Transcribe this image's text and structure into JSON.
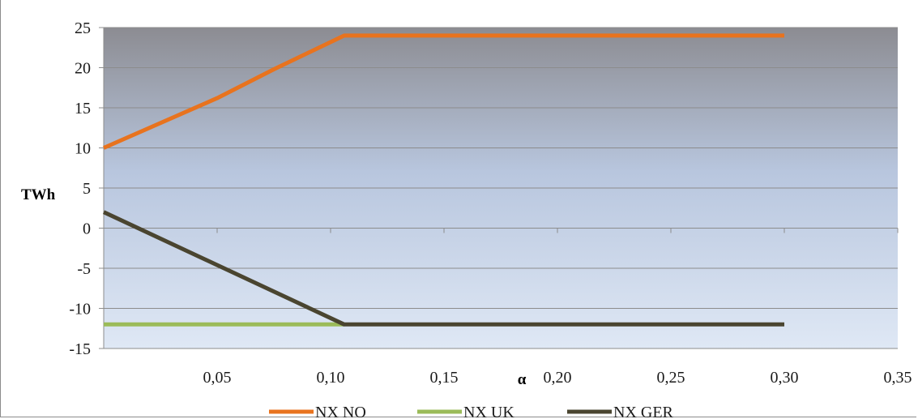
{
  "chart_data": {
    "type": "line",
    "title": "",
    "xlabel": "α",
    "ylabel": "TWh",
    "xlim": [
      0,
      0.35
    ],
    "ylim": [
      -15,
      25
    ],
    "x_ticks": [
      0.05,
      0.1,
      0.15,
      0.2,
      0.25,
      0.3,
      0.35
    ],
    "x_tick_labels": [
      "0,05",
      "0,10",
      "0,15",
      "0,20",
      "0,25",
      "0,30",
      "0,35"
    ],
    "y_ticks": [
      25,
      20,
      15,
      10,
      5,
      0,
      -5,
      -10,
      -15
    ],
    "y_tick_labels": [
      "25",
      "20",
      "15",
      "10",
      "5",
      "0",
      "-5",
      "-10",
      "-15"
    ],
    "grid": "horizontal",
    "legend_position": "bottom",
    "series": [
      {
        "name": "NX NO",
        "color": "#e8731e",
        "points": [
          [
            0,
            10
          ],
          [
            0.05,
            16.2
          ],
          [
            0.075,
            19.8
          ],
          [
            0.106,
            24
          ],
          [
            0.3,
            24
          ]
        ]
      },
      {
        "name": "NX UK",
        "color": "#9bbb59",
        "points": [
          [
            0,
            -12
          ],
          [
            0.106,
            -12
          ]
        ]
      },
      {
        "name": "NX GER",
        "color": "#4a4530",
        "points": [
          [
            0,
            2
          ],
          [
            0.106,
            -12
          ],
          [
            0.3,
            -12
          ]
        ]
      }
    ]
  }
}
